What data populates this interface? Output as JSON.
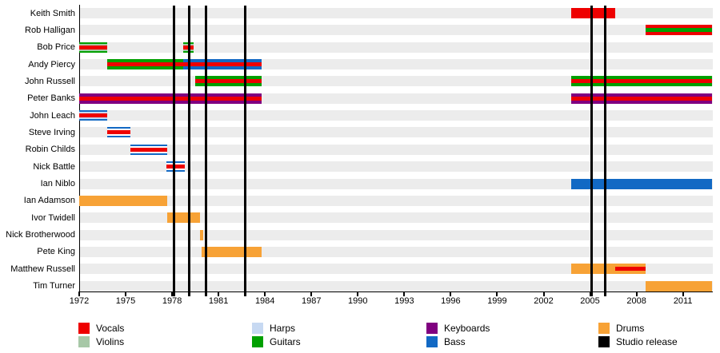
{
  "chart_data": {
    "type": "timeline",
    "description": "Band members timeline with instrument roles and studio release markers",
    "x_axis": {
      "start_year": 1972,
      "end_year": 2012.9,
      "major_tick_years": [
        1972,
        1975,
        1978,
        1981,
        1984,
        1987,
        1990,
        1993,
        1996,
        1999,
        2002,
        2005,
        2008,
        2011
      ]
    },
    "members": [
      "Keith Smith",
      "Rob Halligan",
      "Bob Price",
      "Andy Piercy",
      "John Russell",
      "Peter Banks",
      "John Leach",
      "Steve Irving",
      "Robin Childs",
      "Nick Battle",
      "Ian Niblo",
      "Ian Adamson",
      "Ivor Twidell",
      "Nick Brotherwood",
      "Pete King",
      "Matthew Russell",
      "Tim Turner"
    ],
    "colors": {
      "vocals": "#ee0000",
      "violins": "#a7c8a7",
      "harps": "#c7d9f2",
      "guitars": "#00a000",
      "keyboards": "#800080",
      "bass": "#1269c4",
      "drums": "#f7a236",
      "studio_release": "#000000",
      "white": "#ffffff",
      "row_stripe": "#ececec"
    },
    "bars": [
      {
        "member": "Keith Smith",
        "start": 2003.8,
        "end": 2006.6,
        "base": "vocals"
      },
      {
        "member": "Rob Halligan",
        "start": 2008.6,
        "end": 2012.9,
        "base": "vocals",
        "center": "guitars"
      },
      {
        "member": "Bob Price",
        "start": 1972.0,
        "end": 1973.8,
        "base": "guitars",
        "gap": "violins",
        "center": "vocals"
      },
      {
        "member": "Bob Price",
        "start": 1978.7,
        "end": 1979.4,
        "base": "guitars",
        "gap": "violins",
        "center": "vocals"
      },
      {
        "member": "Andy Piercy",
        "start": 1973.8,
        "end": 1978.7,
        "base": "guitars",
        "center": "vocals"
      },
      {
        "member": "Andy Piercy",
        "start": 1978.7,
        "end": 1983.8,
        "base": "bass",
        "center": "vocals"
      },
      {
        "member": "John Russell",
        "start": 1979.5,
        "end": 1983.8,
        "base": "guitars",
        "center": "vocals"
      },
      {
        "member": "John Russell",
        "start": 2003.8,
        "end": 2012.9,
        "base": "guitars",
        "center": "vocals"
      },
      {
        "member": "Peter Banks",
        "start": 1972.0,
        "end": 1983.8,
        "base": "keyboards",
        "center": "vocals"
      },
      {
        "member": "Peter Banks",
        "start": 2003.8,
        "end": 2012.9,
        "base": "keyboards",
        "center": "vocals"
      },
      {
        "member": "John Leach",
        "start": 1972.0,
        "end": 1973.8,
        "base": "bass",
        "gap": "harps",
        "center": "vocals"
      },
      {
        "member": "Steve Irving",
        "start": 1973.8,
        "end": 1975.3,
        "base": "bass",
        "gap": "white",
        "center": "vocals"
      },
      {
        "member": "Robin Childs",
        "start": 1975.3,
        "end": 1977.7,
        "base": "bass",
        "gap": "white",
        "center": "vocals"
      },
      {
        "member": "Nick Battle",
        "start": 1977.65,
        "end": 1978.8,
        "base": "bass",
        "gap": "white",
        "center": "vocals"
      },
      {
        "member": "Ian Niblo",
        "start": 2003.8,
        "end": 2012.9,
        "base": "bass"
      },
      {
        "member": "Ian Adamson",
        "start": 1972.0,
        "end": 1977.7,
        "base": "drums"
      },
      {
        "member": "Ivor Twidell",
        "start": 1977.7,
        "end": 1979.8,
        "base": "drums"
      },
      {
        "member": "Nick Brotherwood",
        "start": 1979.8,
        "end": 1980.0,
        "base": "drums"
      },
      {
        "member": "Pete King",
        "start": 1979.9,
        "end": 1983.8,
        "base": "drums"
      },
      {
        "member": "Matthew Russell",
        "start": 2003.8,
        "end": 2008.6,
        "base": "drums"
      },
      {
        "member": "Matthew Russell",
        "start": 2006.6,
        "end": 2008.6,
        "center_only": "vocals"
      },
      {
        "member": "Tim Turner",
        "start": 2008.6,
        "end": 2012.9,
        "base": "drums"
      }
    ],
    "studio_releases": [
      1978.1,
      1979.1,
      1980.2,
      1982.7,
      2005.1,
      2006.0
    ],
    "legend": {
      "columns": [
        [
          {
            "label": "Vocals",
            "key": "vocals"
          },
          {
            "label": "Violins",
            "key": "violins"
          }
        ],
        [
          {
            "label": "Harps",
            "key": "harps"
          },
          {
            "label": "Guitars",
            "key": "guitars"
          }
        ],
        [
          {
            "label": "Keyboards",
            "key": "keyboards"
          },
          {
            "label": "Bass",
            "key": "bass"
          }
        ],
        [
          {
            "label": "Drums",
            "key": "drums"
          },
          {
            "label": "Studio release",
            "key": "studio_release"
          }
        ]
      ]
    }
  }
}
